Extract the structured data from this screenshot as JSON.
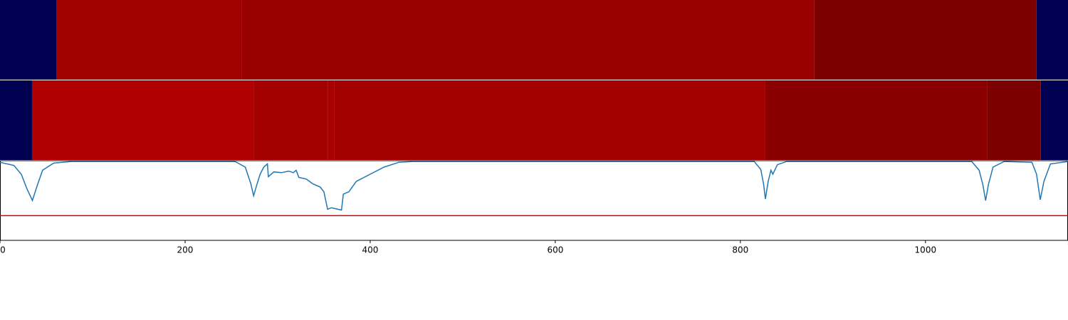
{
  "chart_data": {
    "type": "strips_and_line",
    "xlim": [
      0,
      1154
    ],
    "xticks": [
      0,
      200,
      400,
      600,
      800,
      1000
    ],
    "ylim": [
      0,
      1
    ],
    "strips": [
      {
        "segments": [
          {
            "start": 0,
            "end": 60.8,
            "color": "#000050"
          },
          {
            "start": 60.8,
            "end": 261.5,
            "color": "#a00000"
          },
          {
            "start": 261.5,
            "end": 880,
            "color": "#990000"
          },
          {
            "start": 880,
            "end": 1120,
            "color": "#7d0000"
          },
          {
            "start": 1120,
            "end": 1154,
            "color": "#000050"
          }
        ]
      },
      {
        "segments": [
          {
            "start": 0,
            "end": 34.6,
            "color": "#000050"
          },
          {
            "start": 34.6,
            "end": 274.6,
            "color": "#b00000"
          },
          {
            "start": 274.6,
            "end": 354,
            "color": "#a30000"
          },
          {
            "start": 354,
            "end": 361.5,
            "color": "#a80000"
          },
          {
            "start": 361.5,
            "end": 827,
            "color": "#a30000"
          },
          {
            "start": 827,
            "end": 1067,
            "color": "#8a0000"
          },
          {
            "start": 1067,
            "end": 1124.6,
            "color": "#7d0000"
          },
          {
            "start": 1124.6,
            "end": 1154,
            "color": "#000050"
          }
        ]
      }
    ],
    "line": {
      "color": "#1f77b4",
      "x": [
        0,
        15,
        23,
        29,
        35,
        40,
        46,
        58,
        77,
        254,
        265,
        271,
        274,
        277,
        281,
        285,
        289,
        290,
        296,
        304,
        312,
        317,
        320,
        323,
        331,
        338,
        346,
        350,
        354,
        358,
        369,
        371,
        377,
        385,
        400,
        415,
        431,
        446,
        815,
        822,
        825,
        827,
        830,
        833,
        835,
        840,
        850,
        1050,
        1058,
        1062,
        1065,
        1068,
        1073,
        1085,
        1115,
        1120,
        1124,
        1128,
        1135,
        1154
      ],
      "values": [
        0.98,
        0.94,
        0.83,
        0.65,
        0.5,
        0.68,
        0.88,
        0.97,
        0.99,
        0.99,
        0.92,
        0.71,
        0.56,
        0.68,
        0.83,
        0.92,
        0.96,
        0.8,
        0.86,
        0.85,
        0.87,
        0.85,
        0.88,
        0.79,
        0.77,
        0.71,
        0.67,
        0.61,
        0.39,
        0.41,
        0.38,
        0.58,
        0.61,
        0.74,
        0.83,
        0.92,
        0.98,
        0.99,
        0.99,
        0.89,
        0.71,
        0.52,
        0.74,
        0.88,
        0.83,
        0.95,
        0.99,
        0.99,
        0.88,
        0.7,
        0.5,
        0.7,
        0.92,
        0.99,
        0.98,
        0.83,
        0.51,
        0.74,
        0.96,
        0.99
      ]
    },
    "threshold": {
      "value": 0.31,
      "color": "#e00000"
    }
  }
}
